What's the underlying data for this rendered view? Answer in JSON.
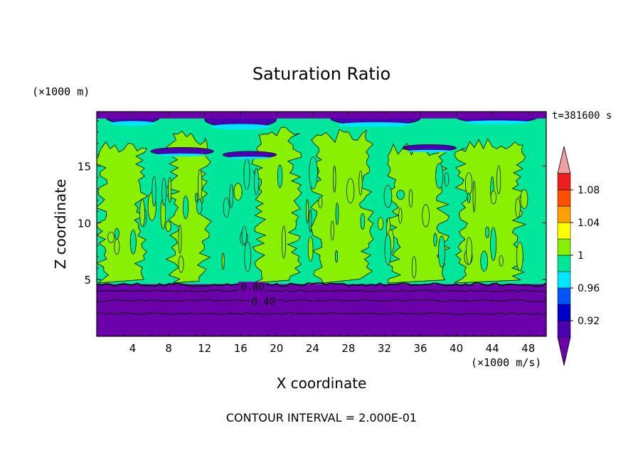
{
  "chart_data": {
    "type": "heatmap",
    "title": "Saturation Ratio",
    "xlabel": "X coordinate",
    "ylabel": "Z coordinate",
    "x_unit": "(×1000 m/s)",
    "y_unit": "(×1000 m)",
    "time_label": "t=381600 s",
    "footer": "CONTOUR INTERVAL = 2.000E-01",
    "xlim": [
      0,
      50
    ],
    "ylim": [
      0,
      19.8
    ],
    "x_ticks": [
      4,
      8,
      12,
      16,
      20,
      24,
      28,
      32,
      36,
      40,
      44,
      48
    ],
    "y_ticks": [
      5,
      10,
      15
    ],
    "contour_labels": [
      {
        "text": "0.80",
        "x": 16,
        "y": 4.3
      },
      {
        "text": "0.40",
        "x": 17.2,
        "y": 3.0
      }
    ],
    "contour_lines_y": [
      4.55,
      4.0,
      3.15,
      2.0
    ],
    "colorbar": {
      "levels": [
        0.9,
        0.92,
        0.94,
        0.96,
        0.98,
        1.0,
        1.02,
        1.04,
        1.06,
        1.08,
        1.1
      ],
      "labels": [
        "0.92",
        "0.96",
        "1",
        "1.04",
        "1.08"
      ],
      "colors": [
        "#6c00ab",
        "#4b00b0",
        "#0000c8",
        "#0055ff",
        "#00e6ff",
        "#00e69b",
        "#88f000",
        "#ffff00",
        "#ffa000",
        "#ff5000",
        "#f01e1e",
        "#f0a0a0"
      ]
    },
    "regions": [
      {
        "level": "below 0.90",
        "z_range": [
          0,
          4.6
        ],
        "color": "#6c00ab"
      },
      {
        "level": "0.98-1.00",
        "z_range": [
          4.6,
          19.8
        ],
        "color": "#00e69b"
      },
      {
        "level": "1.00-1.02",
        "columns_x": [
          [
            0.5,
            5
          ],
          [
            8.5,
            12
          ],
          [
            18,
            22
          ],
          [
            24.5,
            30
          ],
          [
            33,
            38.5
          ],
          [
            40.5,
            47
          ]
        ],
        "color": "#88f000"
      }
    ]
  }
}
